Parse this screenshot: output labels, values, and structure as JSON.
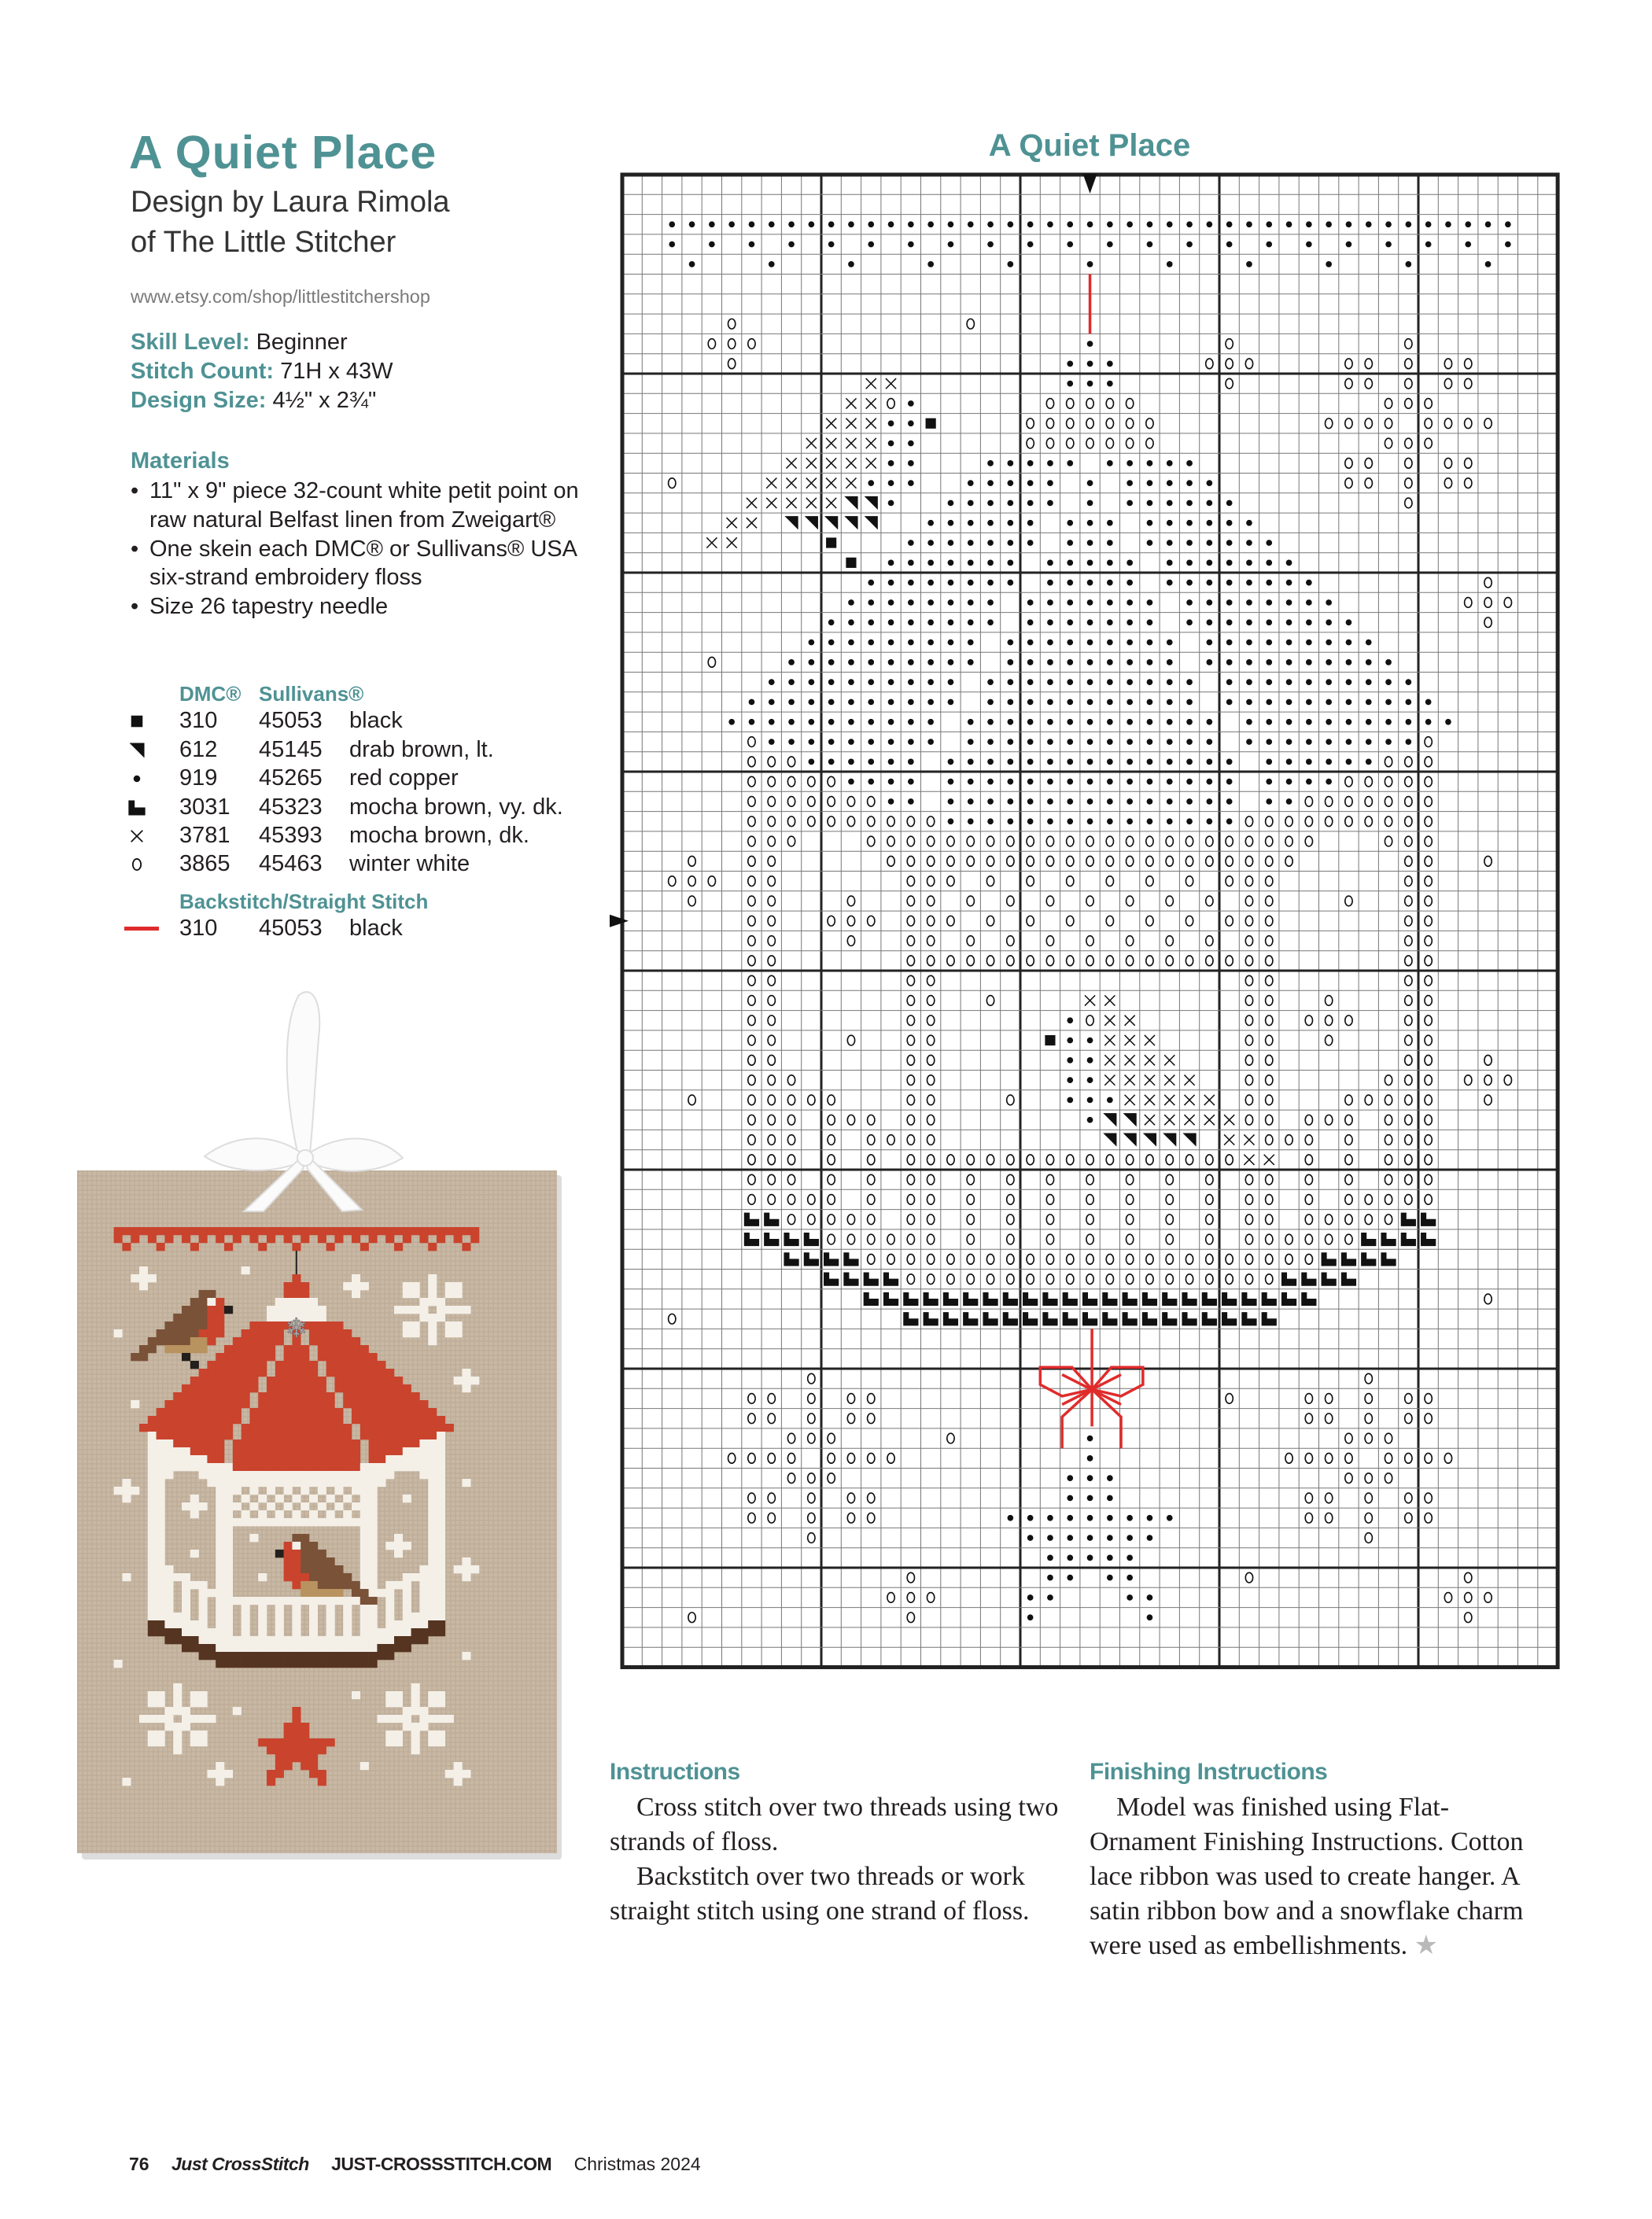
{
  "header": {
    "title": "A Quiet Place",
    "byline_1": "Design by Laura Rimola",
    "byline_2": "of The Little Stitcher",
    "url": "www.etsy.com/shop/littlestitchershop"
  },
  "specs": {
    "skill_label": "Skill Level:",
    "skill_value": "Beginner",
    "count_label": "Stitch Count:",
    "count_value": "71H x 43W",
    "size_label": "Design Size:",
    "size_value": "4½\" x 2¾\""
  },
  "materials": {
    "heading": "Materials",
    "items": [
      "11\" x 9\" piece 32-count white petit point on raw natural Belfast linen from Zweigart®",
      "One skein each DMC® or Sullivans® USA six-strand embroidery floss",
      "Size 26 tapestry needle"
    ]
  },
  "legend": {
    "dmc_header": "DMC®",
    "sullivans_header": "Sullivans®",
    "rows": [
      {
        "symbol": "#",
        "dmc": "310",
        "sullivans": "45053",
        "name": "black"
      },
      {
        "symbol": "v",
        "dmc": "612",
        "sullivans": "45145",
        "name": "drab brown, lt."
      },
      {
        "symbol": "*",
        "dmc": "919",
        "sullivans": "45265",
        "name": "red copper"
      },
      {
        "symbol": "L",
        "dmc": "3031",
        "sullivans": "45323",
        "name": "mocha brown, vy. dk."
      },
      {
        "symbol": "x",
        "dmc": "3781",
        "sullivans": "45393",
        "name": "mocha brown, dk."
      },
      {
        "symbol": "o",
        "dmc": "3865",
        "sullivans": "45463",
        "name": "winter white"
      }
    ],
    "backstitch_header": "Backstitch/Straight Stitch",
    "backstitch": {
      "dmc": "310",
      "sullivans": "45053",
      "name": "black",
      "line_color": "#e02b2b"
    }
  },
  "colors": {
    "accent": "#4f9294",
    "backstitch": "#e02b2b",
    "linen": "#c8b8a4",
    "thread_white": "#f4f0e8",
    "thread_red": "#c9432d",
    "thread_mocha_dk": "#7a5238",
    "thread_mocha_vydk": "#553421",
    "thread_drab": "#b8925f",
    "thread_black": "#231f1c"
  },
  "chart": {
    "title": "A Quiet Place",
    "columns": 47,
    "rows_count": 75,
    "rows": [
      [
        "..........",
        "..........",
        "..........",
        "..........",
        "......."
      ],
      [
        "..........",
        "..........",
        "..........",
        "..........",
        "......."
      ],
      [
        "..********",
        "**********",
        "**********",
        "**********",
        "*****.."
      ],
      [
        "..*.*.*.*.",
        "*.*.*.*.*.",
        "*.*.*.*.*.",
        "*.*.*.*.*.",
        "*.*.*.."
      ],
      [
        "...*...*..",
        ".*...*...*",
        "...*...*..",
        ".*...*...*",
        "...*..."
      ],
      [
        "..........",
        "..........",
        "..........",
        "..........",
        "......."
      ],
      [
        "..........",
        "..........",
        "..........",
        "..........",
        "......."
      ],
      [
        ".....o....",
        ".......o..",
        "..........",
        "..........",
        "......."
      ],
      [
        "....ooo...",
        "..........",
        "...*......",
        "o........o",
        "......."
      ],
      [
        ".....o....",
        "..........",
        "..***....o",
        "oo....oo.o",
        ".oo...."
      ],
      [
        "..........",
        "..xx......",
        "..***.....",
        "o.....oo.o",
        ".oo...."
      ],
      [
        "..........",
        ".xxo*.....",
        ".ooooo....",
        "........oo",
        "o......"
      ],
      [
        "..........",
        "xxx**#....",
        "ooooooo...",
        ".....oooo.",
        "oooo..."
      ],
      [
        ".........x",
        "xxx**.....",
        "ooooooo...",
        "........oo",
        "o......"
      ],
      [
        "........xx",
        "xxx**...**",
        "***.*****.",
        "......oo.o",
        ".oo...."
      ],
      [
        "..o....xxx",
        "xx***..***",
        "**.*.*****",
        "......oo.o",
        ".oo...."
      ],
      [
        "......xxxx",
        "xvv*..****",
        "**.*.*****",
        "*........o",
        "......."
      ],
      [
        ".....xx.vv",
        "vvv..*****",
        "*.***.****",
        "**........",
        "......."
      ],
      [
        "....xx....",
        "#...******",
        "*.***.****",
        "***.......",
        "......."
      ],
      [
        "..........",
        ".#.*******",
        ".*****.***",
        "****......",
        "......."
      ],
      [
        "..........",
        "..********",
        ".*****.***",
        "*****.....",
        "...o..."
      ],
      [
        "..........",
        ".********.",
        "*******.**",
        "******....",
        "..ooo.."
      ],
      [
        "..........",
        "*********.",
        "*******.**",
        "*******...",
        "...o..."
      ],
      [
        ".........*",
        "********.*",
        "********.*",
        "********..",
        "......."
      ],
      [
        "....o...**",
        "********.*",
        "********.*",
        "*********.",
        "......."
      ],
      [
        ".......***",
        "*******.**",
        "*********.",
        "**********",
        "......."
      ],
      [
        "......****",
        "*******.**",
        "*********.",
        "**********",
        "*......"
      ],
      [
        ".....*****",
        "******.***",
        "**********",
        ".*********",
        "**....."
      ],
      [
        "......o***",
        "******.***",
        "**********",
        ".*********",
        "o......"
      ],
      [
        "......ooo*",
        "*****.****",
        "**********",
        "*.******oo",
        "o......"
      ],
      [
        "......oooo",
        "o****.****",
        "**********",
        "*.****oooo",
        "o......"
      ],
      [
        "......oooo",
        "ooo**.****",
        "**********",
        "*.**oooooo",
        "o......"
      ],
      [
        "......oooo",
        "oooooo****",
        "**********",
        "*ooooooooo",
        "o......"
      ],
      [
        "......ooo.",
        "..oooooooo",
        "oooooooooo",
        "ooooo...oo",
        "o......"
      ],
      [
        "...o..oo..",
        "...ooooooo",
        "oooooooooo",
        "oooo.....o",
        "o..o..."
      ],
      [
        "..ooo.oo..",
        "....ooo.o.",
        "o.o.o.o.o.",
        "ooo......o",
        "o......"
      ],
      [
        "...o..oo..",
        ".o..oo.o.o",
        ".o.o.o.o.o",
        ".oo...o..o",
        "o......"
      ],
      [
        "......oo..",
        "ooo.ooo.o.",
        "o.o.o.o.o.",
        "ooo......o",
        "o......"
      ],
      [
        "......oo..",
        ".o..oo.o.o",
        ".o.o.o.o.o",
        ".oo......o",
        "o......"
      ],
      [
        "......oo..",
        "....oooooo",
        "oooooooooo",
        "ooo......o",
        "o......"
      ],
      [
        "......oo..",
        "....oo....",
        "..........",
        ".oo......o",
        "o......"
      ],
      [
        "......oo..",
        "....oo..o.",
        "...xx.....",
        ".oo..o...o",
        "o......"
      ],
      [
        "......oo..",
        "....oo....",
        "..*oxx....",
        ".oo.ooo..o",
        "o......"
      ],
      [
        "......oo..",
        ".o..oo....",
        ".#**xxx...",
        ".oo..o...o",
        "o......"
      ],
      [
        "......oo..",
        "....oo....",
        "..**xxxx..",
        ".oo......o",
        "o..o..."
      ],
      [
        "......ooo.",
        "....oo....",
        "..**xxxxx.",
        ".oo.....oo",
        "o.ooo.."
      ],
      [
        "...o..oooo",
        "o...oo...o",
        "..***xxxxx",
        ".oo...oooo",
        "o..o..."
      ],
      [
        "......ooo.",
        "ooo.oo....",
        "...*vvxxxx",
        "xoo.ooo.oo",
        "o......"
      ],
      [
        "......ooo.",
        "o.oooo....",
        "....vvvvv.",
        "xxooo.o.oo",
        "o......"
      ],
      [
        "......ooo.",
        "o.o.oooooo",
        "oooooooooo",
        "oxx.o.o.oo",
        "o......"
      ],
      [
        "......ooo.",
        "o.o.oo.o.o",
        ".o.o.o.o.o",
        ".oo.o.o.oo",
        "o......"
      ],
      [
        "......oooo",
        "o.o.oo.o.o",
        ".o.o.o.o.o",
        ".oo.o.oooo",
        "o......"
      ],
      [
        "......LLoo",
        "ooo.oo.o.o",
        ".o.o.o.o.o",
        ".oo.oooooL",
        "L......"
      ],
      [
        "......LLLL",
        "oooooo.o.o",
        ".o.o.o.o.o",
        ".ooooooLLL",
        "L......"
      ],
      [
        "........LL",
        "LLoooooooo",
        "oooooooooo",
        "oooooLLLL.",
        "......."
      ],
      [
        "..........",
        "LLLLoooooo",
        "oooooooooo",
        "oooLLLL...",
        "......."
      ],
      [
        "..........",
        "..LLLLLLLL",
        "LLLLLLLLLL",
        "LLLLL.....",
        "...o..."
      ],
      [
        "..o.......",
        "....LLLLLL",
        "LLLLLLLLLL",
        "LLL.......",
        "......."
      ],
      [
        "..........",
        "..........",
        "..........",
        "..........",
        "......."
      ],
      [
        "..........",
        "..........",
        "..........",
        "..........",
        "......."
      ],
      [
        ".........o",
        "..........",
        "..........",
        ".......o..",
        "......."
      ],
      [
        "......oo.o",
        ".oo.......",
        "..........",
        "o...oo.o.o",
        "o......"
      ],
      [
        "......oo.o",
        ".oo.......",
        "..........",
        "....oo.o.o",
        "o......"
      ],
      [
        "........oo",
        "o.....o...",
        "...*......",
        "......ooo.",
        "......."
      ],
      [
        ".....oooo.",
        "oooo......",
        "...*......",
        "...oooo.oo",
        "oo....."
      ],
      [
        "........oo",
        "o.........",
        "..***.....",
        "......ooo.",
        "......."
      ],
      [
        "......oo.o",
        ".oo.......",
        "..***.....",
        "....oo.o.o",
        "o......"
      ],
      [
        "......oo.o",
        ".oo......*",
        "********..",
        "....oo.o.o",
        "o......"
      ],
      [
        ".........o",
        "..........",
        "*******...",
        ".......o..",
        "......."
      ],
      [
        "..........",
        "..........",
        ".*****....",
        "..........",
        "......."
      ],
      [
        "..........",
        "....o.....",
        ".**.**....",
        ".o........",
        "..o...."
      ],
      [
        "..........",
        "...ooo....",
        "**...**...",
        "..........",
        ".ooo..."
      ],
      [
        "...o......",
        "....o.....",
        "*.....*...",
        "..........",
        "..o...."
      ],
      [
        "..........",
        "..........",
        "..........",
        "..........",
        "......."
      ],
      [
        "..........",
        "..........",
        "..........",
        "..........",
        "......."
      ]
    ]
  },
  "instructions": {
    "heading": "Instructions",
    "paragraphs": [
      "Cross stitch over two threads using two strands of floss.",
      "Backstitch over two threads or work straight stitch using one strand of floss."
    ]
  },
  "finishing": {
    "heading": "Finishing Instructions",
    "paragraphs": [
      "Model was finished using Flat-Ornament Finishing Instructions. Cotton lace ribbon was used to create hanger. A satin ribbon bow and a snowflake charm were used as embellishments."
    ],
    "end_mark": "★"
  },
  "footer": {
    "page_number": "76",
    "magazine": "Just CrossStitch",
    "website": "JUST-CROSSSTITCH.COM",
    "issue": "Christmas 2024"
  }
}
